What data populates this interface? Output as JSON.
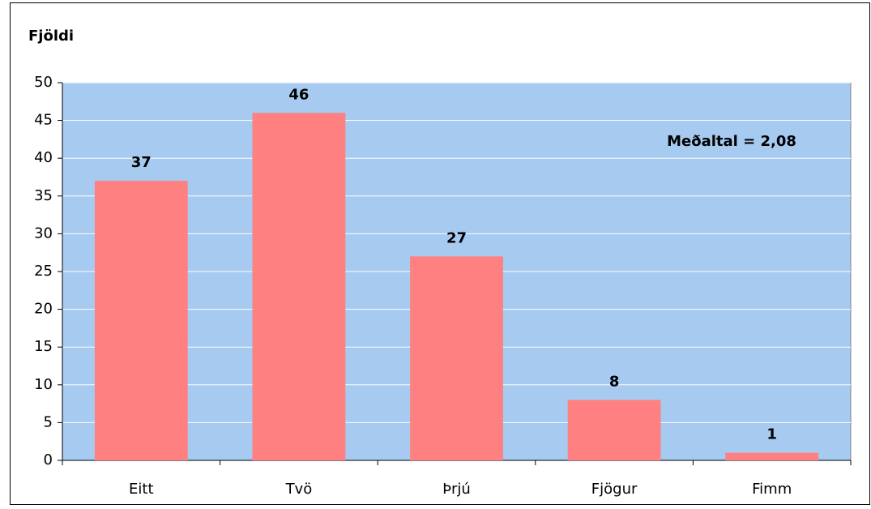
{
  "chart_data": {
    "type": "bar",
    "y_label": "Fjöldi",
    "categories": [
      "Eitt",
      "Tvö",
      "Þrjú",
      "Fjögur",
      "Fimm"
    ],
    "values": [
      37,
      46,
      27,
      8,
      1
    ],
    "color": "#ff8080",
    "background": "#a6caf0",
    "ylim": [
      0,
      50
    ],
    "yticks": [
      0,
      5,
      10,
      15,
      20,
      25,
      30,
      35,
      40,
      45,
      50
    ],
    "grid": true,
    "annotations": [
      "Meðaltal = 2,08"
    ]
  }
}
